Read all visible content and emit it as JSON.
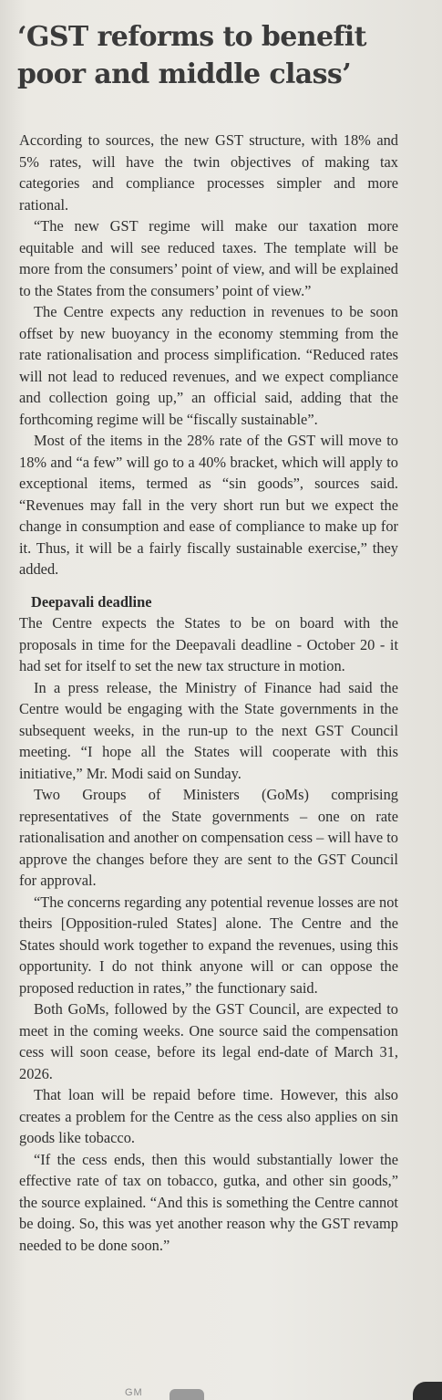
{
  "headline": "‘GST reforms to benefit poor and middle class’",
  "paragraphs_1": [
    "According to sources, the new GST structure, with 18% and 5% rates, will have the twin objectives of making tax categories and compliance processes simpler and more rational.",
    "“The new GST regime will make our taxation more equitable and will see reduced taxes. The template will be more from the consumers’ point of view, and will be explained to the States from the consumers’ point of view.”",
    "The Centre expects any reduction in revenues to be soon offset by new buoyancy in the economy stemming from the rate rationalisation and process simplification. “Reduced rates will not lead to reduced revenues, and we expect compliance and collection going up,” an official said, adding that the forthcoming regime will be “fiscally sustainable”.",
    "Most of the items in the 28% rate of the GST will move to 18% and “a few” will go to a 40% bracket, which will apply to exceptional items, termed as “sin goods”, sources said. “Revenues may fall in the very short run but we expect the change in consumption and ease of compliance to make up for it. Thus, it will be a fairly fiscally sustainable exercise,” they added."
  ],
  "subhead": "Deepavali deadline",
  "paragraphs_2": [
    "The Centre expects the States to be on board with the proposals in time for the Deepavali deadline - October 20 - it had set for itself to set the new tax structure in motion.",
    "In a press release, the Ministry of Finance had said the Centre would be engaging with the State governments in the subsequent weeks, in the run-up to the next GST Council meeting. “I hope all the States will cooperate with this initiative,” Mr. Modi said on Sunday.",
    "Two Groups of Ministers (GoMs) comprising representatives of the State governments – one on rate rationalisation and another on compensation cess – will have to approve the changes before they are sent to the GST Council for approval.",
    "“The concerns regarding any potential revenue losses are not theirs [Opposition-ruled States] alone. The Centre and the States should work together to expand the revenues, using this opportunity. I do not think anyone will or can oppose the proposed reduction in rates,” the functionary said.",
    "Both GoMs, followed by the GST Council, are expected to meet in the coming weeks. One source said the compensation cess will soon cease, before its legal end-date of March 31, 2026.",
    "That loan will be repaid before time. However, this also creates a problem for the Centre as the cess also applies on sin goods like tobacco.",
    "“If the cess ends, then this would substantially lower the effective rate of tax on tobacco, gutka, and other sin goods,” the source explained. “And this is something the Centre cannot be doing. So, this was yet another reason why the GST revamp needed to be done soon.”"
  ],
  "footer_tag": "GM",
  "colors": {
    "paper": "#ecebe6",
    "ink": "#2e2e2e",
    "headline_ink": "#3a3a3a"
  }
}
